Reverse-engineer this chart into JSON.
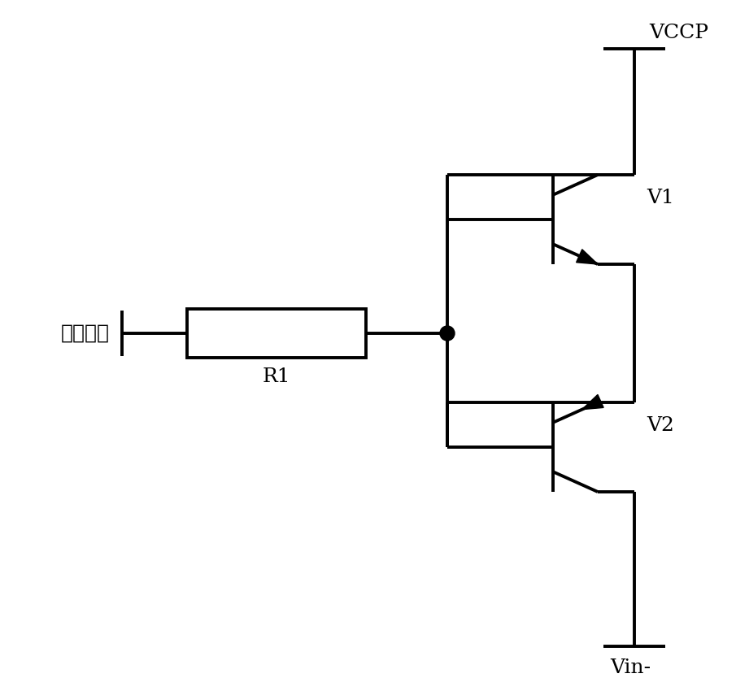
{
  "bg_color": "#ffffff",
  "line_color": "#000000",
  "line_width": 2.8,
  "font_size_label": 18,
  "label_input": "输入信号",
  "label_r1": "R1",
  "label_v1": "V1",
  "label_v2": "V2",
  "label_vccp": "VCCP",
  "label_vout": "Vin-",
  "figsize": [
    9.05,
    8.5
  ],
  "dpi": 100
}
